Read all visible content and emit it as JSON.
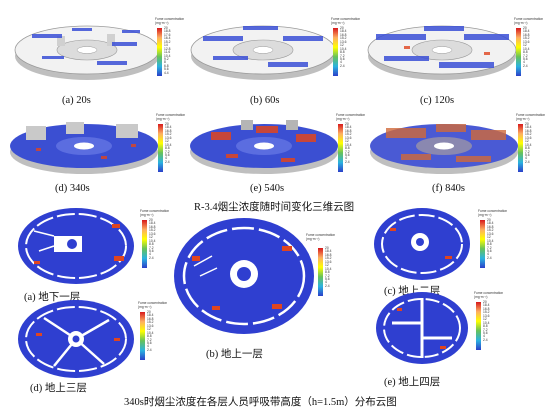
{
  "row1_captions": [
    "(a) 20s",
    "(b) 60s",
    "(c) 120s"
  ],
  "row2_captions": [
    "(d) 340s",
    "(e) 540s",
    "(f) 840s"
  ],
  "figure_3d_title": "R-3.4烟尘浓度随时间变化三维云图",
  "floor_captions": {
    "a": "(a)  地下一层",
    "b": "(b)  地上一层",
    "c": "(c)  地上二层",
    "d": "(d)  地上三层",
    "e": "(e)  地上四层"
  },
  "figure_floor_title": "340s时烟尘浓度在各层人员呼吸带高度（h=1.5m）分布云图",
  "colorbar": {
    "title_line1": "Fume concentration",
    "title_line2": "(mg·m⁻³)",
    "ticks_a": [
      "20",
      "18.8",
      "17.6",
      "16.4",
      "15.2",
      "14",
      "12.8",
      "11.6",
      "10.4",
      "9.2",
      "8",
      "6.8",
      "5.6",
      "4.4"
    ],
    "ticks_b": [
      "20",
      "18.4",
      "16.8",
      "15.2",
      "13.6",
      "12",
      "10.4",
      "8.8",
      "7.2",
      "5.6",
      "4",
      "2.4"
    ],
    "colors": [
      "#d7191c",
      "#fdae61",
      "#ffff00",
      "#66c25a",
      "#2bb3e0",
      "#2b3fc9"
    ]
  }
}
